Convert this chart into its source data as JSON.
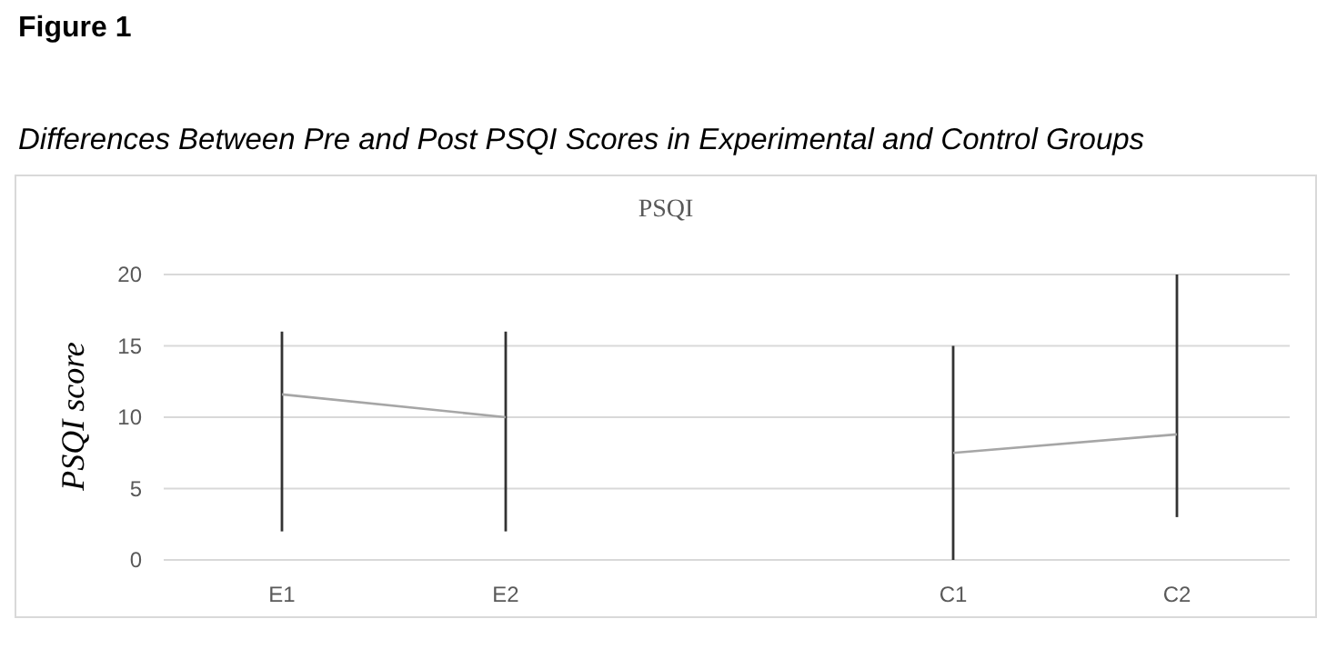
{
  "chart_data": {
    "type": "line",
    "title": "PSQI",
    "ylabel": "PSQI score",
    "categories": [
      "E1",
      "E2",
      null,
      "C1",
      "C2"
    ],
    "series": [
      {
        "type": "bar",
        "color": "#333333",
        "values": [
          14,
          14,
          null,
          15,
          17
        ],
        "base": [
          2,
          2,
          null,
          0,
          3
        ]
      },
      {
        "color": "#a6a6a6",
        "values": [
          11.6,
          10,
          null,
          7.5,
          8.8
        ]
      }
    ],
    "ylim": [
      0,
      20
    ],
    "yticks": [
      0,
      5,
      10,
      15,
      20
    ],
    "grid": "y",
    "marker": "none",
    "line_style": "solid",
    "annotations": [
      "Figure 1",
      "Differences Between Pre and Post PSQI Scores in Experimental and Control Groups"
    ]
  }
}
